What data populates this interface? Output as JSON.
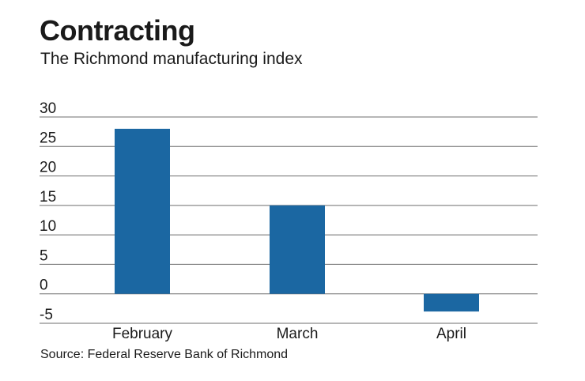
{
  "title": "Contracting",
  "subtitle": "The Richmond manufacturing index",
  "source": "Source: Federal Reserve Bank of Richmond",
  "chart_data": {
    "type": "bar",
    "title": "Contracting",
    "subtitle": "The Richmond manufacturing index",
    "categories": [
      "February",
      "March",
      "April"
    ],
    "values": [
      28,
      15,
      -3
    ],
    "yticks": [
      -5,
      0,
      5,
      10,
      15,
      20,
      25,
      30
    ],
    "ylim": [
      -5,
      30
    ],
    "grid": true,
    "bar_color": "#1b67a2",
    "grid_color": "#6e6e6e"
  }
}
